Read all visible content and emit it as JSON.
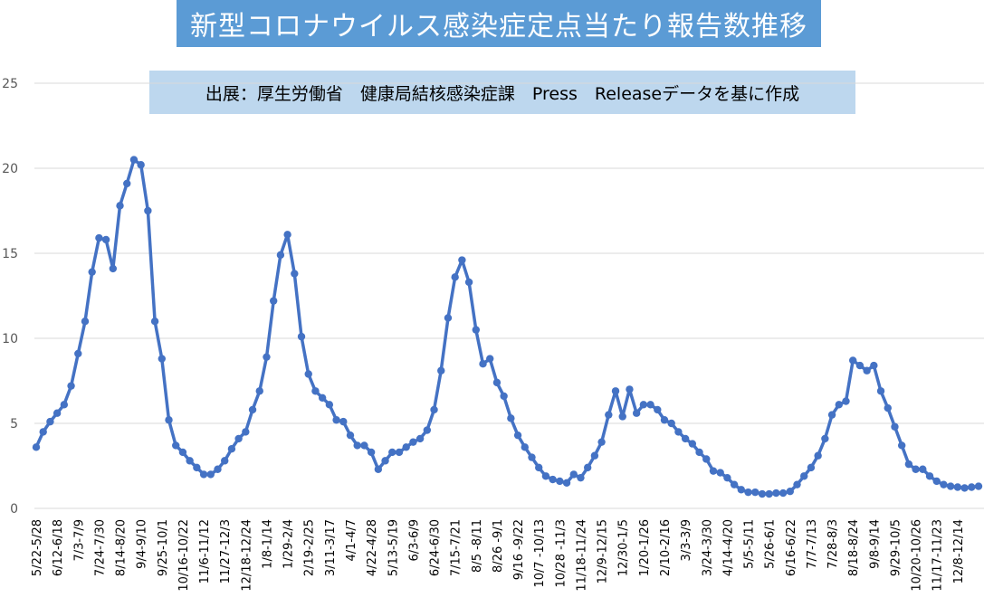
{
  "header": {
    "title": "新型コロナウイルス感染症定点当たり報告数推移",
    "source": "出展：厚生労働省　健康局結核感染症課　Press　Releaseデータを基に作成"
  },
  "colors": {
    "series": "#4472c4",
    "grid": "#d9d9d9",
    "title_bg": "#5b9bd5",
    "source_bg": "#bdd7ee"
  },
  "chart_data": {
    "type": "line",
    "title": "新型コロナウイルス感染症定点当たり報告数推移",
    "xlabel": "",
    "ylabel": "",
    "ylim": [
      0,
      25
    ],
    "yticks": [
      0,
      5,
      10,
      15,
      20,
      25
    ],
    "grid": "horizontal",
    "x_tick_labels": [
      "5/22-5/28",
      "6/12-6/18",
      "7/3-7/9",
      "7/24-7/30",
      "8/14-8/20",
      "9/4-9/10",
      "9/25-10/1",
      "10/16-10/22",
      "11/6-11/12",
      "11/27-12/3",
      "12/18-12/24",
      "1/8-1/14",
      "1/29-2/4",
      "2/19-2/25",
      "3/11-3/17",
      "4/1-4/7",
      "4/22-4/28",
      "5/13-5/19",
      "6/3-6/9",
      "6/24-6/30",
      "7/15-7/21",
      "8/5 -8/11",
      "8/26 -9/1",
      "9/16 -9/22",
      "10/7 -10/13",
      "10/28 -11/3",
      "11/18-11/24",
      "12/9-12/15",
      "12/30-1/5",
      "1/20-1/26",
      "2/10-2/16",
      "3/3-3/9",
      "3/24-3/30",
      "4/14-4/20",
      "5/5-5/11",
      "5/26-6/1",
      "6/16-6/22",
      "7/7-7/13",
      "7/28-8/3",
      "8/18-8/24",
      "9/8-9/14",
      "9/29-10/5",
      "10/20-10/26",
      "11/17-11/23",
      "12/8-12/14"
    ],
    "series": [
      {
        "values": [
          3.6,
          4.5,
          5.1,
          5.6,
          6.1,
          7.2,
          9.1,
          11.0,
          13.9,
          15.9,
          15.8,
          14.1,
          17.8,
          19.1,
          20.5,
          20.2,
          17.5,
          11.0,
          8.8,
          5.2,
          3.7,
          3.3,
          2.8,
          2.4,
          2.0,
          2.0,
          2.3,
          2.8,
          3.5,
          4.1,
          4.5,
          5.8,
          6.9,
          8.9,
          12.2,
          14.9,
          16.1,
          13.8,
          10.1,
          7.9,
          6.9,
          6.5,
          6.1,
          5.2,
          5.1,
          4.3,
          3.7,
          3.7,
          3.3,
          2.3,
          2.8,
          3.3,
          3.3,
          3.6,
          3.9,
          4.1,
          4.6,
          5.8,
          8.1,
          11.2,
          13.6,
          14.6,
          13.3,
          10.5,
          8.5,
          8.8,
          7.4,
          6.6,
          5.3,
          4.3,
          3.6,
          3.0,
          2.4,
          1.9,
          1.7,
          1.6,
          1.5,
          2.0,
          1.8,
          2.4,
          3.1,
          3.9,
          5.5,
          6.9,
          5.4,
          7.0,
          5.6,
          6.1,
          6.1,
          5.8,
          5.2,
          5.0,
          4.5,
          4.1,
          3.8,
          3.3,
          2.9,
          2.2,
          2.1,
          1.8,
          1.4,
          1.1,
          0.95,
          0.95,
          0.85,
          0.85,
          0.9,
          0.9,
          1.0,
          1.4,
          1.9,
          2.4,
          3.1,
          4.1,
          5.5,
          6.1,
          6.3,
          8.7,
          8.4,
          8.1,
          8.4,
          6.9,
          5.9,
          4.8,
          3.7,
          2.6,
          2.3,
          2.3,
          1.9,
          1.6,
          1.4,
          1.3,
          1.25,
          1.2,
          1.25,
          1.3
        ]
      }
    ]
  }
}
